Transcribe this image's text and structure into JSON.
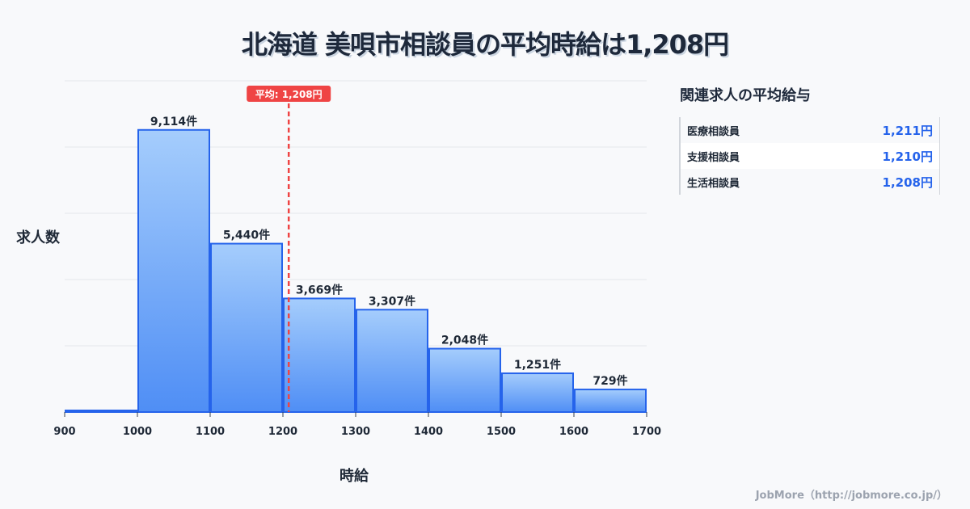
{
  "title": "北海道 美唄市相談員の平均時給は1,208円",
  "chart_data": {
    "type": "bar",
    "title": "北海道 美唄市相談員の平均時給は1,208円",
    "xlabel": "時給",
    "ylabel": "求人数",
    "bin_edges": [
      900,
      1000,
      1100,
      1200,
      1300,
      1400,
      1500,
      1600,
      1700
    ],
    "x_tick_labels": [
      "900",
      "1000",
      "1100",
      "1200",
      "1300",
      "1400",
      "1500",
      "1600",
      "1700"
    ],
    "values": [
      0,
      9114,
      5440,
      3669,
      3307,
      2048,
      1251,
      729
    ],
    "data_labels": [
      "",
      "9,114件",
      "5,440件",
      "3,669件",
      "3,307件",
      "2,048件",
      "1,251件",
      "729件"
    ],
    "ylim": [
      0,
      10700
    ],
    "grid": true,
    "mean": 1208,
    "mean_label": "平均: 1,208円",
    "colors": {
      "bar_top": "#a5cdfc",
      "bar_bottom": "#4f8ef5",
      "bar_stroke": "#2563eb",
      "mean": "#ef4444"
    }
  },
  "side_panel": {
    "title": "関連求人の平均給与",
    "rows": [
      {
        "name": "医療相談員",
        "value": "1,211円"
      },
      {
        "name": "支援相談員",
        "value": "1,210円"
      },
      {
        "name": "生活相談員",
        "value": "1,208円"
      }
    ]
  },
  "footer": "JobMore（http://jobmore.co.jp/）"
}
